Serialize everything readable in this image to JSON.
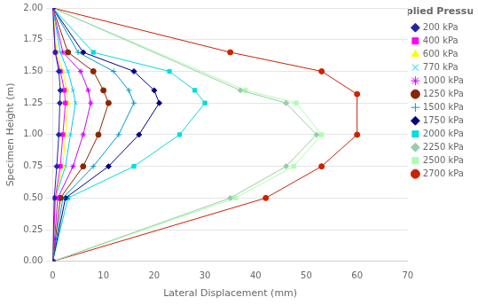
{
  "chart_data": {
    "type": "line",
    "xlabel": "Lateral Displacement (mm)",
    "ylabel": "Specimen Height (m)",
    "legend_title": "Applied Pressure:",
    "xlim": [
      0,
      70
    ],
    "ylim": [
      0,
      2
    ],
    "xticks": [
      0,
      10,
      20,
      30,
      40,
      50,
      60,
      70
    ],
    "yticks": [
      {
        "value": 0,
        "label": "0.00"
      },
      0.25,
      {
        "value": 0.5,
        "label": "0.50"
      },
      0.75,
      {
        "value": 1.0,
        "label": "1.00"
      },
      1.25,
      {
        "value": 1.5,
        "label": "1.50"
      },
      1.75,
      {
        "value": 2.0,
        "label": "2.00"
      }
    ],
    "grid": "y",
    "legend": "right",
    "series": [
      {
        "name": "200 kPa",
        "color": "#2222aa",
        "marker": "diamond",
        "x": [
          0,
          0.3,
          0.8,
          1.2,
          1.4,
          1.5,
          1.2,
          0.5,
          0
        ],
        "values": [
          0,
          0.5,
          0.75,
          1.0,
          1.25,
          1.35,
          1.5,
          1.65,
          2.0
        ]
      },
      {
        "name": "400 kPa",
        "color": "#ff00ff",
        "marker": "square",
        "x": [
          0,
          0.5,
          1.5,
          2.0,
          2.5,
          2.3,
          1.5,
          0.5,
          0
        ],
        "values": [
          0,
          0.5,
          0.75,
          1.0,
          1.25,
          1.35,
          1.5,
          1.65,
          2.0
        ]
      },
      {
        "name": "600 kPa",
        "color": "#ffff00",
        "marker": "triangle",
        "x": [
          0,
          0.5,
          2.0,
          2.5,
          3.0,
          2.8,
          2.0,
          0.8,
          0
        ],
        "values": [
          0,
          0.5,
          0.75,
          1.0,
          1.25,
          1.35,
          1.5,
          1.65,
          2.0
        ]
      },
      {
        "name": "770 kPa",
        "color": "#00ccff",
        "marker": "x",
        "x": [
          0,
          0.5,
          2.5,
          3.5,
          4.5,
          4.0,
          3.0,
          1.5,
          0
        ],
        "values": [
          0,
          0.5,
          0.75,
          1.0,
          1.25,
          1.35,
          1.5,
          1.65,
          2.0
        ]
      },
      {
        "name": "1000 kPa",
        "color": "#cc00ff",
        "marker": "star",
        "x": [
          0,
          1.0,
          4.0,
          6.0,
          7.5,
          7.0,
          5.5,
          2.0,
          0
        ],
        "values": [
          0,
          0.5,
          0.75,
          1.0,
          1.25,
          1.35,
          1.5,
          1.65,
          2.0
        ]
      },
      {
        "name": "1250 kPa",
        "color": "#8b2500",
        "marker": "circle",
        "x": [
          0,
          1.5,
          6.0,
          9.0,
          11.0,
          10.0,
          8.0,
          3.0,
          0
        ],
        "values": [
          0,
          0.5,
          0.75,
          1.0,
          1.25,
          1.35,
          1.5,
          1.65,
          2.0
        ]
      },
      {
        "name": "1500 kPa",
        "color": "#0099cc",
        "marker": "plus",
        "x": [
          0,
          2.0,
          8.0,
          13.0,
          16.0,
          15.0,
          12.0,
          5.0,
          0
        ],
        "values": [
          0,
          0.5,
          0.75,
          1.0,
          1.25,
          1.35,
          1.5,
          1.65,
          2.0
        ]
      },
      {
        "name": "1750 kPa",
        "color": "#000088",
        "marker": "diamond",
        "x": [
          0,
          2.5,
          11.0,
          17.0,
          21.0,
          20.0,
          16.0,
          6.0,
          0
        ],
        "values": [
          0,
          0.5,
          0.75,
          1.0,
          1.25,
          1.35,
          1.5,
          1.65,
          2.0
        ]
      },
      {
        "name": "2000 kPa",
        "color": "#00dddd",
        "marker": "square",
        "x": [
          0,
          3.0,
          16.0,
          25.0,
          30.0,
          28.0,
          23.0,
          8.0,
          0
        ],
        "values": [
          0,
          0.5,
          0.75,
          1.0,
          1.25,
          1.35,
          1.5,
          1.65,
          2.0
        ]
      },
      {
        "name": "2250 kPa",
        "color": "#99ccaa",
        "marker": "diamond",
        "x": [
          0,
          35.0,
          46.0,
          52.0,
          46.0,
          37.0,
          0
        ],
        "values": [
          0,
          0.5,
          0.75,
          1.0,
          1.25,
          1.35,
          2.0
        ]
      },
      {
        "name": "2500 kPa",
        "color": "#aaffaa",
        "marker": "square",
        "x": [
          0,
          36.0,
          47.5,
          53.0,
          48.0,
          38.0,
          0
        ],
        "values": [
          0,
          0.5,
          0.75,
          1.0,
          1.25,
          1.35,
          2.0
        ]
      },
      {
        "name": "2700 kPa",
        "color": "#cc2200",
        "marker": "circle",
        "x": [
          0,
          42.0,
          53.0,
          60.0,
          60.0,
          53.0,
          35.0,
          0
        ],
        "values": [
          0,
          0.5,
          0.75,
          1.0,
          1.32,
          1.5,
          1.65,
          2.0
        ]
      }
    ]
  }
}
